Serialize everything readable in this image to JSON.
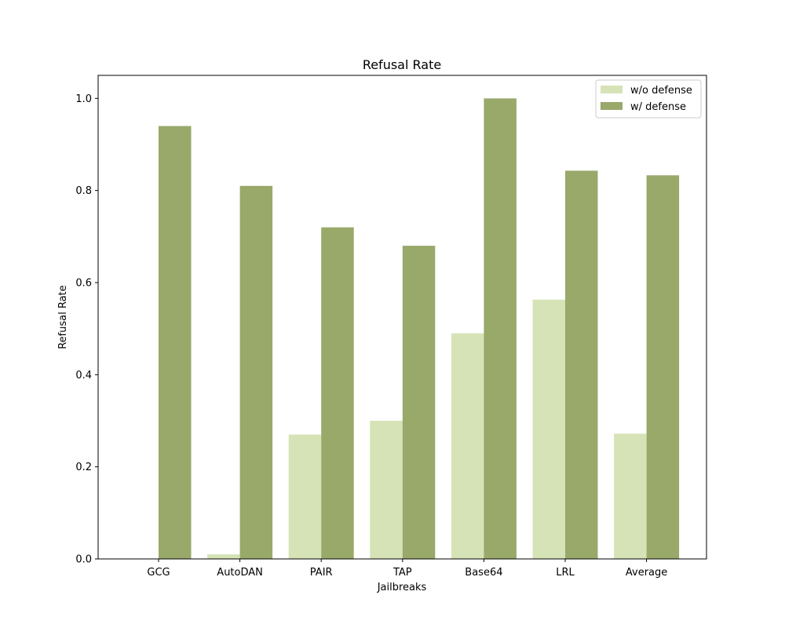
{
  "chart_data": {
    "type": "bar",
    "title": "Refusal Rate",
    "xlabel": "Jailbreaks",
    "ylabel": "Refusal Rate",
    "categories": [
      "GCG",
      "AutoDAN",
      "PAIR",
      "TAP",
      "Base64",
      "LRL",
      "Average"
    ],
    "series": [
      {
        "name": "w/o defense",
        "color": "#d6e3b7",
        "values": [
          0.0,
          0.01,
          0.27,
          0.3,
          0.49,
          0.563,
          0.272
        ]
      },
      {
        "name": "w/ defense",
        "color": "#98a96a",
        "values": [
          0.94,
          0.81,
          0.72,
          0.68,
          1.0,
          0.843,
          0.833
        ]
      }
    ],
    "ylim": [
      0,
      1.05
    ],
    "yticks": [
      "0.0",
      "0.2",
      "0.4",
      "0.6",
      "0.8",
      "1.0"
    ],
    "grid": false,
    "legend_position": "top-right"
  }
}
